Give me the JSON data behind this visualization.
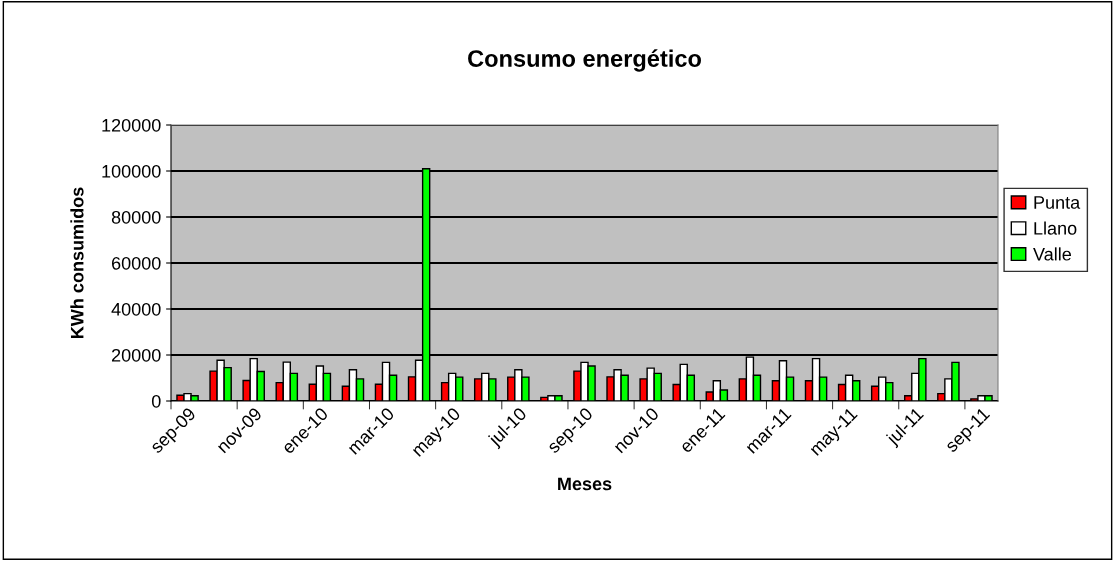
{
  "chart_data": {
    "type": "bar",
    "title": "Consumo energético",
    "xlabel": "Meses",
    "ylabel": "KWh consumidos",
    "categories": [
      "sep-09",
      null,
      "nov-09",
      null,
      "ene-10",
      null,
      "mar-10",
      null,
      "may-10",
      null,
      "jul-10",
      null,
      "sep-10",
      null,
      "nov-10",
      null,
      "ene-11",
      null,
      "mar-11",
      null,
      "may-11",
      null,
      "jul-11",
      null,
      "sep-11"
    ],
    "series": [
      {
        "name": "Punta",
        "color": "#ff0000",
        "values": [
          2500,
          13000,
          8900,
          8000,
          7300,
          6400,
          7300,
          10500,
          8000,
          9600,
          10400,
          1600,
          13000,
          10500,
          9600,
          7200,
          3900,
          9600,
          8800,
          8800,
          7200,
          6400,
          2300,
          3200,
          900
        ]
      },
      {
        "name": "Llano",
        "color": "#ffffff",
        "values": [
          3200,
          17700,
          18400,
          16900,
          15200,
          13600,
          16800,
          17700,
          12000,
          12000,
          13600,
          2300,
          16800,
          13600,
          14300,
          15900,
          8800,
          19100,
          17500,
          18400,
          11200,
          10400,
          12000,
          9600,
          2300
        ]
      },
      {
        "name": "Valle",
        "color": "#00ff00",
        "values": [
          2300,
          14500,
          12800,
          12000,
          12000,
          9600,
          11200,
          101000,
          10400,
          9600,
          10400,
          2300,
          15200,
          11200,
          12000,
          11200,
          4800,
          11200,
          10400,
          10400,
          8800,
          8000,
          18400,
          16800,
          2300
        ]
      }
    ],
    "ylim": [
      0,
      120000
    ],
    "yticks": [
      0,
      20000,
      40000,
      60000,
      80000,
      100000,
      120000
    ],
    "grid": "y",
    "legend": "right"
  }
}
